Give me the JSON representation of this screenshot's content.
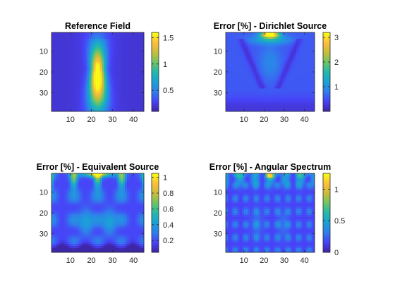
{
  "figure": {
    "colormap": "parula",
    "colormap_stops": [
      "#3e26a8",
      "#4743f8",
      "#2f7feb",
      "#1aa1d6",
      "#23b9aa",
      "#6dc466",
      "#c7bd3c",
      "#fdbd3c",
      "#f9fb15"
    ]
  },
  "chart_data": [
    {
      "type": "heatmap",
      "title": "Reference Field",
      "x_ticks": [
        "10",
        "20",
        "30",
        "40"
      ],
      "y_ticks": [
        "10",
        "20",
        "30"
      ],
      "xlim": [
        1,
        44
      ],
      "ylim": [
        1,
        38
      ],
      "y_direction": "reverse",
      "grid_size": [
        44,
        38
      ],
      "color_range": [
        0.1,
        1.6
      ],
      "colorbar_ticks": [
        "0.5",
        "1",
        "1.5"
      ],
      "colorbar_values": [
        0.5,
        1,
        1.5
      ],
      "field": {
        "pattern": "beam",
        "peak": 1.55,
        "center_x": 22.5,
        "focus_y": 22,
        "background": 0.2
      }
    },
    {
      "type": "heatmap",
      "title": "Error [%] - Dirichlet Source",
      "x_ticks": [
        "10",
        "20",
        "30",
        "40"
      ],
      "y_ticks": [
        "10",
        "20",
        "30"
      ],
      "xlim": [
        1,
        44
      ],
      "ylim": [
        1,
        38
      ],
      "y_direction": "reverse",
      "grid_size": [
        44,
        38
      ],
      "color_range": [
        0,
        3.2
      ],
      "colorbar_ticks": [
        "1",
        "2",
        "3"
      ],
      "colorbar_values": [
        1,
        2,
        3
      ],
      "field": {
        "pattern": "dirichlet",
        "peak": 3.2,
        "center_x": 22.5
      }
    },
    {
      "type": "heatmap",
      "title": "Error [%] - Equivalent Source",
      "x_ticks": [
        "10",
        "20",
        "30",
        "40"
      ],
      "y_ticks": [
        "10",
        "20",
        "30"
      ],
      "xlim": [
        1,
        44
      ],
      "ylim": [
        1,
        38
      ],
      "y_direction": "reverse",
      "grid_size": [
        44,
        38
      ],
      "color_range": [
        0.05,
        1.05
      ],
      "colorbar_ticks": [
        "0.2",
        "0.4",
        "0.6",
        "0.8",
        "1"
      ],
      "colorbar_values": [
        0.2,
        0.4,
        0.6,
        0.8,
        1
      ],
      "field": {
        "pattern": "equivalent",
        "peak": 1.0,
        "center_x": 22.5
      }
    },
    {
      "type": "heatmap",
      "title": "Error [%] - Angular Spectrum",
      "x_ticks": [
        "10",
        "20",
        "30",
        "40"
      ],
      "y_ticks": [
        "10",
        "20",
        "30"
      ],
      "xlim": [
        1,
        44
      ],
      "ylim": [
        1,
        38
      ],
      "y_direction": "reverse",
      "grid_size": [
        44,
        38
      ],
      "color_range": [
        0,
        1.25
      ],
      "colorbar_ticks": [
        "0",
        "0.5",
        "1"
      ],
      "colorbar_values": [
        0,
        0.5,
        1
      ],
      "field": {
        "pattern": "angular",
        "peak": 1.2,
        "center_x": 22.5
      }
    }
  ]
}
